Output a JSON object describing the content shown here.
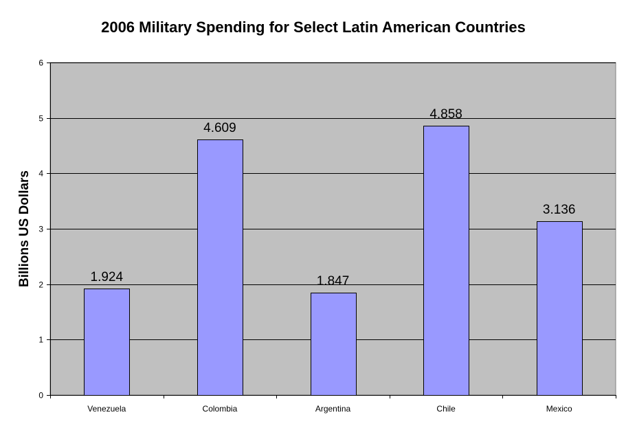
{
  "colors": {
    "plot_background": "#c0c0c0",
    "bar_fill": "#9999ff",
    "bar_stroke": "#000000",
    "gridline": "#000000",
    "page_background": "#ffffff"
  },
  "chart_data": {
    "type": "bar",
    "title": "2006 Military Spending for Select Latin American Countries",
    "xlabel": "",
    "ylabel": "Billions US Dollars",
    "categories": [
      "Venezuela",
      "Colombia",
      "Argentina",
      "Chile",
      "Mexico"
    ],
    "values": [
      1.924,
      4.609,
      1.847,
      4.858,
      3.136
    ],
    "data_labels": [
      "1.924",
      "4.609",
      "1.847",
      "4.858",
      "3.136"
    ],
    "ylim": [
      0,
      6
    ],
    "yticks": [
      0,
      1,
      2,
      3,
      4,
      5,
      6
    ],
    "ytick_labels": [
      "0",
      "1",
      "2",
      "3",
      "4",
      "5",
      "6"
    ],
    "grid": true,
    "legend": "none"
  }
}
